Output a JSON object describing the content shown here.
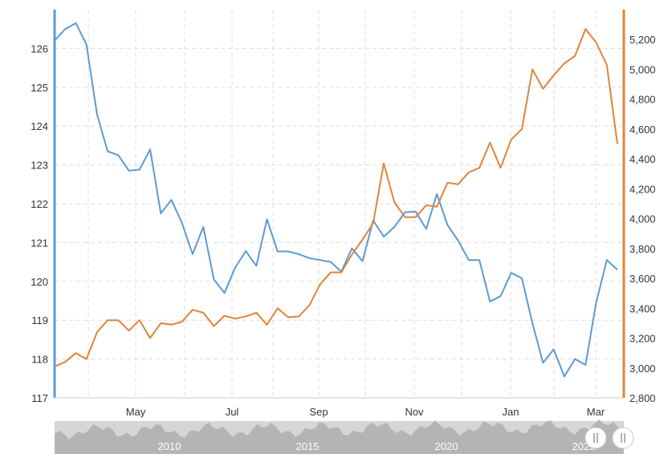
{
  "chart_data": {
    "type": "line",
    "grid": true,
    "x_ticks": [
      "May",
      "Jul",
      "Sep",
      "Nov",
      "Jan",
      "Mar"
    ],
    "y_left": {
      "ticks": [
        "117",
        "118",
        "119",
        "120",
        "121",
        "122",
        "123",
        "124",
        "125",
        "126"
      ],
      "range": [
        117,
        127
      ]
    },
    "y_right": {
      "ticks": [
        "2,800",
        "3,000",
        "3,200",
        "3,400",
        "3,600",
        "3,800",
        "4,000",
        "4,200",
        "4,400",
        "4,600",
        "4,800",
        "5,000",
        "5,200"
      ],
      "range": [
        2800,
        5400
      ]
    },
    "series": [
      {
        "axis": "left",
        "color": "#5b9bd5",
        "values": [
          126.2,
          126.5,
          126.65,
          126.1,
          124.3,
          123.35,
          123.25,
          122.85,
          122.88,
          123.4,
          121.75,
          122.1,
          121.5,
          120.7,
          121.4,
          120.05,
          119.7,
          120.35,
          120.78,
          120.4,
          121.6,
          120.77,
          120.77,
          120.7,
          120.6,
          120.55,
          120.5,
          120.25,
          120.85,
          120.52,
          121.57,
          121.15,
          121.4,
          121.78,
          121.8,
          121.35,
          122.25,
          121.45,
          121.05,
          120.55,
          120.55,
          119.48,
          119.62,
          120.22,
          120.08,
          118.92,
          117.9,
          118.25,
          117.55,
          118.0,
          117.85,
          119.45,
          120.55,
          120.3
        ]
      },
      {
        "axis": "right",
        "color": "#e0843a",
        "values": [
          3010,
          3040,
          3100,
          3060,
          3240,
          3320,
          3320,
          3250,
          3320,
          3200,
          3300,
          3290,
          3310,
          3390,
          3370,
          3280,
          3350,
          3330,
          3345,
          3370,
          3290,
          3400,
          3340,
          3345,
          3420,
          3560,
          3640,
          3640,
          3760,
          3860,
          3970,
          4370,
          4110,
          4010,
          4010,
          4090,
          4080,
          4240,
          4230,
          4310,
          4340,
          4510,
          4340,
          4530,
          4600,
          5000,
          4870,
          4960,
          5040,
          5090,
          5270,
          5180,
          5030,
          4500
        ]
      }
    ]
  },
  "navigator": {
    "years": [
      "2010",
      "2015",
      "2020",
      "2025"
    ]
  }
}
